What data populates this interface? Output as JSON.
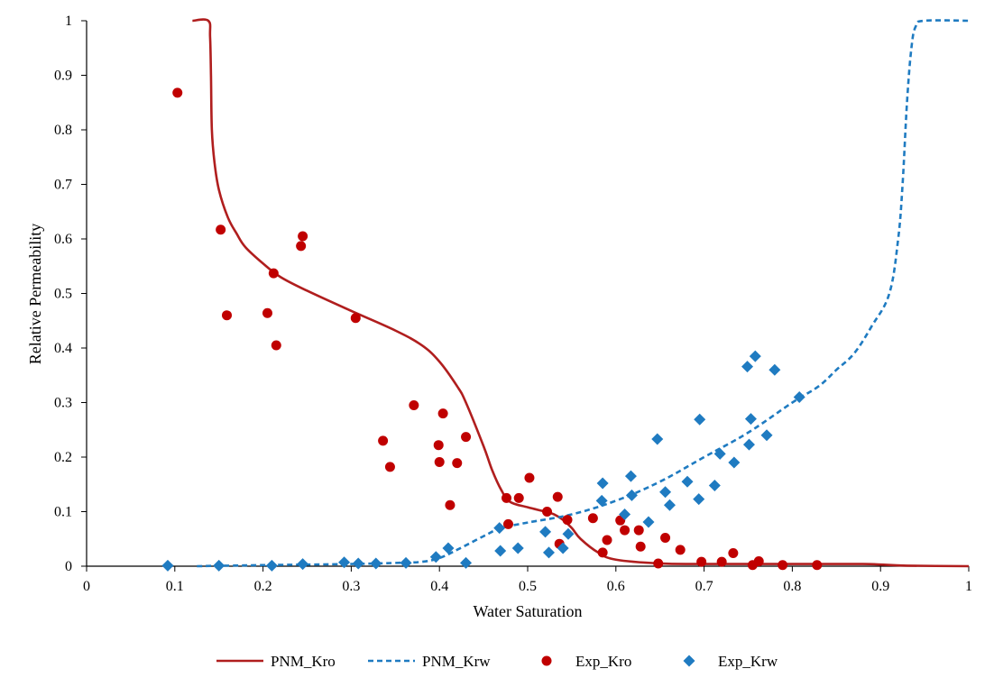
{
  "chart_data": {
    "type": "scatter",
    "title": "",
    "xlabel": "Water Saturation",
    "ylabel": "Relative Permeability",
    "xlim": [
      0,
      1
    ],
    "ylim": [
      0,
      1
    ],
    "x_ticks": [
      "0",
      "0.1",
      "0.2",
      "0.3",
      "0.4",
      "0.5",
      "0.6",
      "0.7",
      "0.8",
      "0.9",
      "1"
    ],
    "y_ticks": [
      "0",
      "0.1",
      "0.2",
      "0.3",
      "0.4",
      "0.5",
      "0.6",
      "0.7",
      "0.8",
      "0.9",
      "1"
    ],
    "grid": false,
    "legend_position": "bottom",
    "series": [
      {
        "name": "PNM_Kro",
        "kind": "line",
        "style": "solid",
        "color": "#b01e1e",
        "points": [
          [
            0.12,
            1.0
          ],
          [
            0.138,
            1.0
          ],
          [
            0.14,
            0.97
          ],
          [
            0.141,
            0.9
          ],
          [
            0.142,
            0.8
          ],
          [
            0.145,
            0.74
          ],
          [
            0.15,
            0.69
          ],
          [
            0.16,
            0.64
          ],
          [
            0.17,
            0.61
          ],
          [
            0.18,
            0.585
          ],
          [
            0.2,
            0.555
          ],
          [
            0.22,
            0.53
          ],
          [
            0.25,
            0.505
          ],
          [
            0.3,
            0.468
          ],
          [
            0.35,
            0.432
          ],
          [
            0.38,
            0.405
          ],
          [
            0.4,
            0.375
          ],
          [
            0.42,
            0.33
          ],
          [
            0.43,
            0.3
          ],
          [
            0.45,
            0.22
          ],
          [
            0.46,
            0.175
          ],
          [
            0.47,
            0.14
          ],
          [
            0.48,
            0.118
          ],
          [
            0.5,
            0.108
          ],
          [
            0.52,
            0.1
          ],
          [
            0.53,
            0.095
          ],
          [
            0.54,
            0.085
          ],
          [
            0.55,
            0.07
          ],
          [
            0.56,
            0.05
          ],
          [
            0.58,
            0.025
          ],
          [
            0.6,
            0.012
          ],
          [
            0.65,
            0.005
          ],
          [
            0.7,
            0.004
          ],
          [
            0.8,
            0.004
          ],
          [
            0.88,
            0.004
          ],
          [
            0.9,
            0.003
          ],
          [
            0.93,
            0.001
          ],
          [
            1.0,
            0.0
          ]
        ]
      },
      {
        "name": "PNM_Krw",
        "kind": "line",
        "style": "dashed",
        "color": "#1f7bc1",
        "points": [
          [
            0.125,
            0.0
          ],
          [
            0.2,
            0.002
          ],
          [
            0.3,
            0.004
          ],
          [
            0.35,
            0.006
          ],
          [
            0.38,
            0.008
          ],
          [
            0.4,
            0.015
          ],
          [
            0.42,
            0.03
          ],
          [
            0.45,
            0.055
          ],
          [
            0.47,
            0.07
          ],
          [
            0.5,
            0.08
          ],
          [
            0.55,
            0.095
          ],
          [
            0.6,
            0.12
          ],
          [
            0.65,
            0.155
          ],
          [
            0.7,
            0.2
          ],
          [
            0.75,
            0.245
          ],
          [
            0.8,
            0.3
          ],
          [
            0.83,
            0.33
          ],
          [
            0.85,
            0.36
          ],
          [
            0.87,
            0.39
          ],
          [
            0.89,
            0.44
          ],
          [
            0.91,
            0.5
          ],
          [
            0.92,
            0.6
          ],
          [
            0.925,
            0.7
          ],
          [
            0.93,
            0.85
          ],
          [
            0.935,
            0.95
          ],
          [
            0.94,
            0.99
          ],
          [
            0.95,
            1.0
          ],
          [
            1.0,
            1.0
          ]
        ]
      },
      {
        "name": "Exp_Kro",
        "kind": "scatter",
        "marker": "circle",
        "color": "#c00000",
        "points": [
          [
            0.103,
            0.868
          ],
          [
            0.152,
            0.617
          ],
          [
            0.159,
            0.46
          ],
          [
            0.205,
            0.464
          ],
          [
            0.212,
            0.537
          ],
          [
            0.215,
            0.405
          ],
          [
            0.243,
            0.587
          ],
          [
            0.245,
            0.605
          ],
          [
            0.305,
            0.455
          ],
          [
            0.336,
            0.23
          ],
          [
            0.344,
            0.182
          ],
          [
            0.371,
            0.295
          ],
          [
            0.399,
            0.222
          ],
          [
            0.4,
            0.191
          ],
          [
            0.404,
            0.28
          ],
          [
            0.412,
            0.112
          ],
          [
            0.42,
            0.189
          ],
          [
            0.43,
            0.237
          ],
          [
            0.476,
            0.125
          ],
          [
            0.478,
            0.077
          ],
          [
            0.49,
            0.125
          ],
          [
            0.502,
            0.162
          ],
          [
            0.522,
            0.1
          ],
          [
            0.534,
            0.127
          ],
          [
            0.536,
            0.041
          ],
          [
            0.545,
            0.085
          ],
          [
            0.574,
            0.088
          ],
          [
            0.585,
            0.025
          ],
          [
            0.59,
            0.048
          ],
          [
            0.605,
            0.084
          ],
          [
            0.61,
            0.066
          ],
          [
            0.626,
            0.066
          ],
          [
            0.628,
            0.036
          ],
          [
            0.648,
            0.005
          ],
          [
            0.656,
            0.052
          ],
          [
            0.673,
            0.03
          ],
          [
            0.697,
            0.008
          ],
          [
            0.72,
            0.008
          ],
          [
            0.733,
            0.024
          ],
          [
            0.755,
            0.002
          ],
          [
            0.762,
            0.009
          ],
          [
            0.789,
            0.002
          ],
          [
            0.828,
            0.002
          ]
        ]
      },
      {
        "name": "Exp_Krw",
        "kind": "scatter",
        "marker": "diamond",
        "color": "#1f7bc1",
        "points": [
          [
            0.092,
            0.001
          ],
          [
            0.15,
            0.001
          ],
          [
            0.21,
            0.001
          ],
          [
            0.245,
            0.004
          ],
          [
            0.292,
            0.007
          ],
          [
            0.308,
            0.005
          ],
          [
            0.328,
            0.005
          ],
          [
            0.362,
            0.006
          ],
          [
            0.396,
            0.017
          ],
          [
            0.41,
            0.033
          ],
          [
            0.43,
            0.006
          ],
          [
            0.468,
            0.07
          ],
          [
            0.469,
            0.028
          ],
          [
            0.489,
            0.033
          ],
          [
            0.52,
            0.063
          ],
          [
            0.524,
            0.025
          ],
          [
            0.54,
            0.033
          ],
          [
            0.546,
            0.059
          ],
          [
            0.584,
            0.12
          ],
          [
            0.585,
            0.152
          ],
          [
            0.61,
            0.095
          ],
          [
            0.617,
            0.165
          ],
          [
            0.618,
            0.13
          ],
          [
            0.637,
            0.081
          ],
          [
            0.647,
            0.233
          ],
          [
            0.656,
            0.136
          ],
          [
            0.661,
            0.112
          ],
          [
            0.681,
            0.155
          ],
          [
            0.694,
            0.123
          ],
          [
            0.695,
            0.269
          ],
          [
            0.712,
            0.148
          ],
          [
            0.718,
            0.206
          ],
          [
            0.734,
            0.19
          ],
          [
            0.749,
            0.366
          ],
          [
            0.751,
            0.223
          ],
          [
            0.753,
            0.27
          ],
          [
            0.758,
            0.385
          ],
          [
            0.771,
            0.24
          ],
          [
            0.78,
            0.36
          ],
          [
            0.808,
            0.31
          ]
        ]
      }
    ]
  }
}
